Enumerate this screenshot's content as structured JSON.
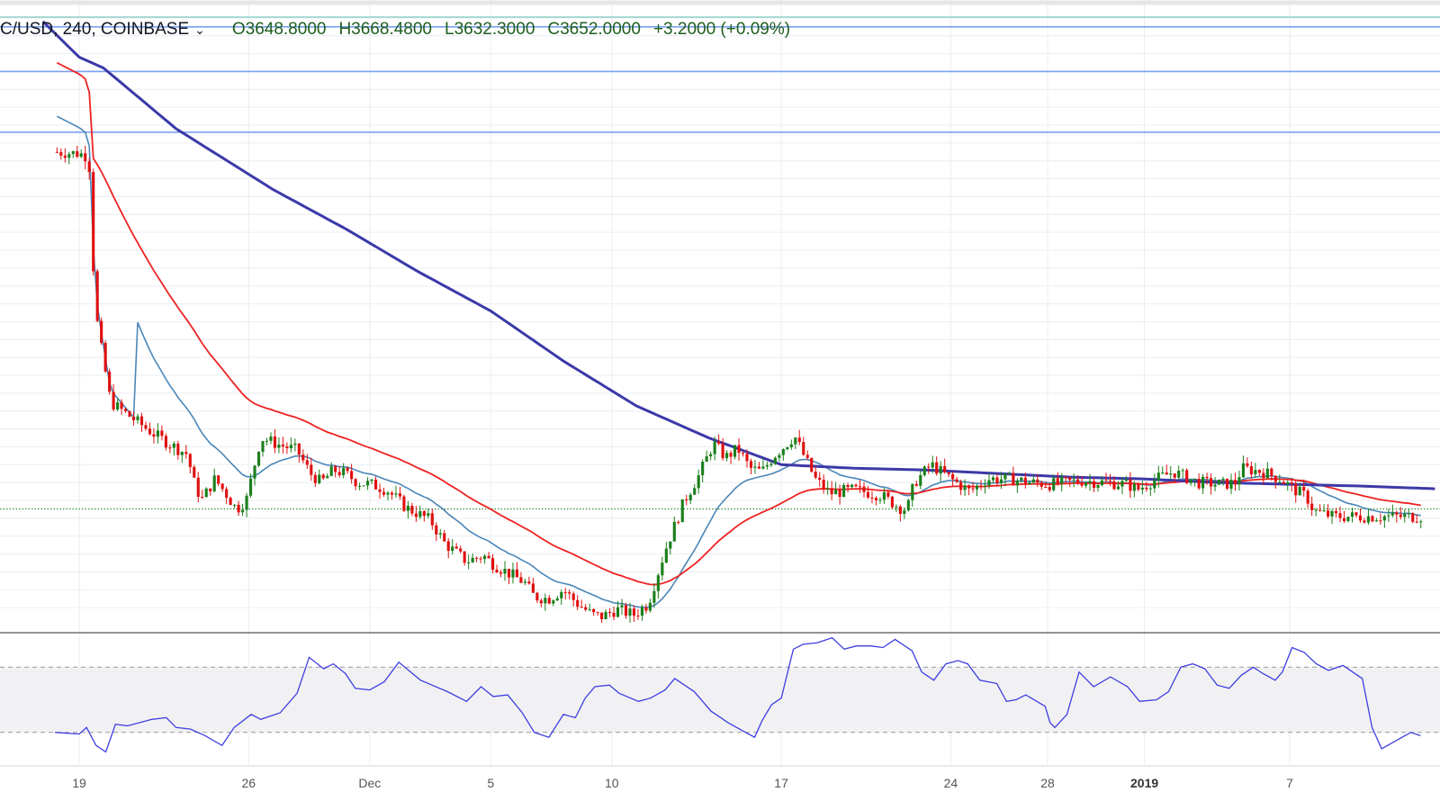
{
  "header": {
    "symbol": "C/USD, 240, COINBASE",
    "open": "O3648.8000",
    "high": "H3668.4800",
    "low": "L3632.3000",
    "close": "C3652.0000",
    "change": "+3.2000 (+0.09%)",
    "dropdown_icon": "chevron-down-icon"
  },
  "colors": {
    "bull": "#1b7f1b",
    "bear": "#e01010",
    "ema_fast": "#4a86b8",
    "ema_slow": "#ee2222",
    "sma_long": "#3c39a8",
    "hline": "#7aa0ef",
    "rsi": "#3e3ee0",
    "grid": "#e9edf2"
  },
  "chart_data": {
    "type": "candlestick",
    "price_ylim": [
      3000,
      6500
    ],
    "rsi_ylim": [
      10,
      90
    ],
    "rsi_bands": [
      70,
      30
    ],
    "current_price_line": 3652,
    "horizontal_levels": [
      6350,
      6100,
      5760
    ],
    "x_ticks": [
      "19",
      "26",
      "Dec",
      "5",
      "10",
      "17",
      "24",
      "28",
      "2019",
      "7"
    ],
    "x_tick_days": [
      19,
      26,
      31,
      36,
      41,
      48,
      55,
      59,
      63,
      69
    ],
    "start_day": 18,
    "candles_per_day": 6,
    "price_path": [
      [
        18,
        5650
      ],
      [
        19.05,
        5640
      ],
      [
        19.4,
        5620
      ],
      [
        19.65,
        4780
      ],
      [
        19.9,
        4560
      ],
      [
        20.3,
        4250
      ],
      [
        21,
        4180
      ],
      [
        22,
        4080
      ],
      [
        22.8,
        4010
      ],
      [
        23.45,
        3960
      ],
      [
        23.75,
        3800
      ],
      [
        24.05,
        3700
      ],
      [
        24.6,
        3820
      ],
      [
        25.0,
        3750
      ],
      [
        25.5,
        3650
      ],
      [
        25.9,
        3700
      ],
      [
        26.5,
        4050
      ],
      [
        27.3,
        4010
      ],
      [
        28.0,
        3980
      ],
      [
        28.55,
        3850
      ],
      [
        29.0,
        3800
      ],
      [
        29.5,
        3870
      ],
      [
        30.0,
        3850
      ],
      [
        30.5,
        3800
      ],
      [
        31.05,
        3790
      ],
      [
        31.7,
        3760
      ],
      [
        32.5,
        3660
      ],
      [
        33.5,
        3590
      ],
      [
        34.1,
        3460
      ],
      [
        34.45,
        3420
      ],
      [
        35.0,
        3360
      ],
      [
        35.7,
        3390
      ],
      [
        36.15,
        3340
      ],
      [
        36.9,
        3280
      ],
      [
        37.4,
        3240
      ],
      [
        37.8,
        3160
      ],
      [
        38.4,
        3150
      ],
      [
        39.0,
        3200
      ],
      [
        39.6,
        3120
      ],
      [
        40.2,
        3060
      ],
      [
        40.6,
        3050
      ],
      [
        41.2,
        3090
      ],
      [
        41.9,
        3060
      ],
      [
        42.5,
        3120
      ],
      [
        43.2,
        3420
      ],
      [
        44.0,
        3700
      ],
      [
        44.6,
        3840
      ],
      [
        45.2,
        4020
      ],
      [
        45.7,
        3940
      ],
      [
        46.2,
        3990
      ],
      [
        46.7,
        3880
      ],
      [
        47.2,
        3860
      ],
      [
        47.7,
        3950
      ],
      [
        48.1,
        4000
      ],
      [
        48.55,
        4060
      ],
      [
        48.9,
        3960
      ],
      [
        49.4,
        3820
      ],
      [
        50.0,
        3740
      ],
      [
        51.0,
        3760
      ],
      [
        52.1,
        3730
      ],
      [
        52.9,
        3660
      ],
      [
        53.2,
        3650
      ],
      [
        53.5,
        3800
      ],
      [
        54.2,
        3900
      ],
      [
        55.0,
        3820
      ],
      [
        55.8,
        3750
      ],
      [
        56.5,
        3820
      ],
      [
        57.5,
        3820
      ],
      [
        58.3,
        3800
      ],
      [
        59.1,
        3790
      ],
      [
        60.4,
        3810
      ],
      [
        61.4,
        3800
      ],
      [
        62.3,
        3790
      ],
      [
        62.7,
        3760
      ],
      [
        63.5,
        3820
      ],
      [
        64.2,
        3860
      ],
      [
        65.2,
        3800
      ],
      [
        66.2,
        3790
      ],
      [
        66.8,
        3800
      ],
      [
        67.0,
        3880
      ],
      [
        67.9,
        3860
      ],
      [
        68.6,
        3820
      ],
      [
        69.2,
        3760
      ],
      [
        69.7,
        3720
      ],
      [
        70.0,
        3640
      ],
      [
        70.8,
        3610
      ],
      [
        71.5,
        3610
      ]
    ],
    "rsi_path": [
      [
        18,
        30
      ],
      [
        19.0,
        29
      ],
      [
        19.3,
        33
      ],
      [
        19.7,
        22
      ],
      [
        20.1,
        18
      ],
      [
        20.5,
        35
      ],
      [
        21.0,
        34
      ],
      [
        22.0,
        38
      ],
      [
        22.6,
        39
      ],
      [
        23.0,
        33
      ],
      [
        23.6,
        32
      ],
      [
        24.2,
        28
      ],
      [
        24.9,
        22
      ],
      [
        25.4,
        33
      ],
      [
        26.1,
        41
      ],
      [
        26.5,
        38
      ],
      [
        27.3,
        42
      ],
      [
        28.0,
        54
      ],
      [
        28.5,
        76
      ],
      [
        29.1,
        69
      ],
      [
        29.5,
        72
      ],
      [
        30.0,
        66
      ],
      [
        30.4,
        57
      ],
      [
        31.0,
        56
      ],
      [
        31.6,
        61
      ],
      [
        32.2,
        73
      ],
      [
        33.1,
        62
      ],
      [
        34.2,
        55
      ],
      [
        35.0,
        49
      ],
      [
        35.6,
        58
      ],
      [
        36.1,
        52
      ],
      [
        36.7,
        53
      ],
      [
        37.3,
        42
      ],
      [
        37.8,
        30
      ],
      [
        38.4,
        27
      ],
      [
        39.0,
        41
      ],
      [
        39.5,
        39
      ],
      [
        39.9,
        51
      ],
      [
        40.3,
        58
      ],
      [
        40.9,
        59
      ],
      [
        41.3,
        54
      ],
      [
        42.1,
        49
      ],
      [
        42.6,
        51
      ],
      [
        43.2,
        56
      ],
      [
        43.6,
        63
      ],
      [
        44.0,
        59
      ],
      [
        44.4,
        55
      ],
      [
        45.1,
        43
      ],
      [
        45.8,
        36
      ],
      [
        46.4,
        31
      ],
      [
        46.9,
        27
      ],
      [
        47.2,
        37
      ],
      [
        47.6,
        47
      ],
      [
        48.0,
        51
      ],
      [
        48.5,
        81
      ],
      [
        48.9,
        84
      ],
      [
        49.5,
        85
      ],
      [
        50.1,
        88
      ],
      [
        50.6,
        81
      ],
      [
        51.1,
        83
      ],
      [
        51.7,
        83
      ],
      [
        52.2,
        82
      ],
      [
        52.7,
        87
      ],
      [
        53.4,
        80
      ],
      [
        53.8,
        67
      ],
      [
        54.3,
        62
      ],
      [
        54.8,
        72
      ],
      [
        55.3,
        74
      ],
      [
        55.7,
        72
      ],
      [
        56.2,
        62
      ],
      [
        56.9,
        60
      ],
      [
        57.3,
        49
      ],
      [
        57.7,
        50
      ],
      [
        58.1,
        53
      ],
      [
        58.9,
        46
      ],
      [
        59.1,
        36
      ],
      [
        59.3,
        33
      ],
      [
        59.8,
        41
      ],
      [
        60.3,
        67
      ],
      [
        60.9,
        58
      ],
      [
        61.6,
        64
      ],
      [
        62.3,
        58
      ],
      [
        62.8,
        49
      ],
      [
        63.5,
        50
      ],
      [
        64.0,
        55
      ],
      [
        64.5,
        70
      ],
      [
        65.0,
        72
      ],
      [
        65.5,
        69
      ],
      [
        66.0,
        59
      ],
      [
        66.5,
        57
      ],
      [
        67.0,
        65
      ],
      [
        67.5,
        70
      ],
      [
        67.9,
        66
      ],
      [
        68.4,
        62
      ],
      [
        68.7,
        67
      ],
      [
        69.1,
        82
      ],
      [
        69.6,
        79
      ],
      [
        70.1,
        72
      ],
      [
        70.6,
        68
      ],
      [
        71.2,
        71
      ],
      [
        71.6,
        67
      ],
      [
        72.0,
        63
      ],
      [
        72.4,
        33
      ],
      [
        72.8,
        20
      ],
      [
        73.4,
        25
      ],
      [
        74.0,
        30
      ],
      [
        74.4,
        28
      ]
    ]
  }
}
